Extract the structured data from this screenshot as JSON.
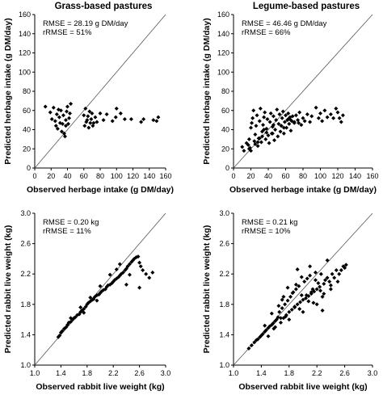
{
  "chart_data": [
    {
      "type": "scatter",
      "title": "Grass-based pastures",
      "xlabel": "Observed herbage intake (g DM/day)",
      "ylabel": "Predicted herbage intake (g DM/day)",
      "xlim": [
        0,
        160
      ],
      "ylim": [
        0,
        160
      ],
      "xticks": [
        "0",
        "20",
        "40",
        "60",
        "80",
        "100",
        "120",
        "140",
        "160"
      ],
      "yticks": [
        "0",
        "20",
        "40",
        "60",
        "80",
        "100",
        "120",
        "140",
        "160"
      ],
      "annotations": [
        "RMSE = 28.19 g DM/day",
        "rRMSE = 51%"
      ],
      "identity_line": true,
      "grid": false,
      "x": [
        13,
        19,
        21,
        23,
        25,
        26,
        27,
        28,
        29,
        30,
        31,
        32,
        33,
        34,
        35,
        36,
        37,
        38,
        38,
        39,
        40,
        41,
        42,
        43,
        44,
        60,
        61,
        62,
        63,
        64,
        65,
        66,
        67,
        68,
        69,
        70,
        71,
        72,
        74,
        76,
        80,
        84,
        88,
        95,
        99,
        100,
        105,
        110,
        118,
        130,
        133,
        145,
        149,
        151
      ],
      "y": [
        64,
        58,
        51,
        63,
        49,
        44,
        56,
        41,
        61,
        53,
        47,
        60,
        38,
        46,
        55,
        36,
        33,
        44,
        50,
        59,
        64,
        46,
        52,
        57,
        67,
        55,
        44,
        62,
        48,
        50,
        54,
        42,
        59,
        47,
        51,
        57,
        44,
        47,
        53,
        48,
        57,
        50,
        56,
        49,
        53,
        62,
        57,
        51,
        51,
        48,
        51,
        50,
        49,
        53
      ]
    },
    {
      "type": "scatter",
      "title": "Legume-based pastures",
      "xlabel": "Observed herbage intake (g DM/day)",
      "ylabel": "Predicted herbage intake (g DM/day)",
      "xlim": [
        0,
        160
      ],
      "ylim": [
        0,
        160
      ],
      "xticks": [
        "0",
        "20",
        "40",
        "60",
        "80",
        "100",
        "120",
        "140",
        "160"
      ],
      "yticks": [
        "0",
        "20",
        "40",
        "60",
        "80",
        "100",
        "120",
        "140",
        "160"
      ],
      "annotations": [
        "RMSE = 46.46 g DM/day",
        "rRMSE = 66%"
      ],
      "identity_line": true,
      "grid": false,
      "x": [
        10,
        12,
        15,
        17,
        18,
        19,
        20,
        21,
        22,
        23,
        24,
        25,
        26,
        27,
        28,
        29,
        30,
        31,
        32,
        33,
        34,
        35,
        36,
        37,
        38,
        39,
        40,
        41,
        42,
        43,
        44,
        45,
        46,
        47,
        48,
        49,
        50,
        51,
        52,
        53,
        54,
        55,
        56,
        57,
        58,
        59,
        60,
        61,
        62,
        63,
        64,
        65,
        66,
        67,
        68,
        70,
        72,
        74,
        76,
        78,
        80,
        82,
        85,
        88,
        90,
        95,
        98,
        100,
        102,
        105,
        108,
        112,
        115,
        118,
        120,
        122,
        124,
        126,
        20,
        25,
        30,
        35,
        45,
        55,
        63,
        70,
        18,
        28,
        33,
        38,
        46,
        58,
        66,
        75
      ],
      "y": [
        22,
        18,
        26,
        24,
        30,
        21,
        42,
        47,
        52,
        60,
        28,
        35,
        44,
        55,
        23,
        31,
        49,
        62,
        27,
        38,
        45,
        53,
        58,
        30,
        41,
        51,
        34,
        26,
        48,
        57,
        36,
        43,
        54,
        29,
        40,
        50,
        61,
        33,
        46,
        56,
        38,
        44,
        52,
        59,
        36,
        48,
        55,
        42,
        50,
        57,
        46,
        53,
        39,
        49,
        54,
        47,
        55,
        50,
        58,
        45,
        52,
        49,
        56,
        48,
        54,
        63,
        52,
        57,
        49,
        60,
        53,
        56,
        52,
        62,
        58,
        52,
        48,
        55,
        18,
        25,
        31,
        40,
        36,
        44,
        51,
        48,
        20,
        27,
        33,
        37,
        45,
        42,
        50,
        47
      ]
    },
    {
      "type": "scatter",
      "xlabel": "Observed rabbit live weight (kg)",
      "ylabel": "Predicted rabbit live weight (kg)",
      "xlim": [
        1.0,
        3.0
      ],
      "ylim": [
        1.0,
        3.0
      ],
      "xticks": [
        "1.0",
        "1.4",
        "1.8",
        "2.2",
        "2.6",
        "3.0"
      ],
      "yticks": [
        "1.0",
        "1.4",
        "1.8",
        "2.2",
        "2.6",
        "3.0"
      ],
      "annotations": [
        "RMSE = 0.20 kg",
        "rRMSE = 11%"
      ],
      "identity_line": true,
      "grid": false,
      "x": [
        1.36,
        1.38,
        1.4,
        1.42,
        1.45,
        1.48,
        1.5,
        1.52,
        1.55,
        1.58,
        1.6,
        1.62,
        1.65,
        1.68,
        1.7,
        1.72,
        1.75,
        1.78,
        1.8,
        1.82,
        1.85,
        1.88,
        1.9,
        1.92,
        1.95,
        1.98,
        2.0,
        2.02,
        2.05,
        2.08,
        2.1,
        2.12,
        2.15,
        2.18,
        2.2,
        2.22,
        2.25,
        2.28,
        2.3,
        2.32,
        2.35,
        2.38,
        2.4,
        2.42,
        2.45,
        2.48,
        2.5,
        2.52,
        2.55,
        2.58,
        2.6,
        2.62,
        2.65,
        2.7,
        2.75,
        2.8,
        1.55,
        1.7,
        1.85,
        2.0,
        2.15,
        2.3,
        2.45,
        2.6,
        1.75,
        1.95,
        2.25,
        2.4
      ],
      "y": [
        1.37,
        1.39,
        1.43,
        1.45,
        1.48,
        1.5,
        1.53,
        1.56,
        1.57,
        1.6,
        1.62,
        1.63,
        1.66,
        1.67,
        1.7,
        1.72,
        1.74,
        1.77,
        1.8,
        1.82,
        1.84,
        1.86,
        1.87,
        1.9,
        1.92,
        1.93,
        1.95,
        1.97,
        1.99,
        2.0,
        2.03,
        2.05,
        2.06,
        2.08,
        2.1,
        2.12,
        2.14,
        2.16,
        2.18,
        2.2,
        2.22,
        2.25,
        2.27,
        2.3,
        2.33,
        2.36,
        2.38,
        2.4,
        2.42,
        2.43,
        2.35,
        2.3,
        2.25,
        2.2,
        2.15,
        2.22,
        1.62,
        1.76,
        1.89,
        2.04,
        2.19,
        2.33,
        2.19,
        2.02,
        1.69,
        1.85,
        2.26,
        2.06
      ]
    },
    {
      "type": "scatter",
      "xlabel": "Observed rabbit live weight (kg)",
      "ylabel": "Predicted rabbit live weight (kg)",
      "xlim": [
        1.0,
        3.0
      ],
      "ylim": [
        1.0,
        3.0
      ],
      "xticks": [
        "1.0",
        "1.4",
        "1.8",
        "2.2",
        "2.6",
        "3.0"
      ],
      "yticks": [
        "1.0",
        "1.4",
        "1.8",
        "2.2",
        "2.6",
        "3.0"
      ],
      "annotations": [
        "RMSE = 0.21 kg",
        "rRMSE = 10%"
      ],
      "identity_line": true,
      "grid": false,
      "x": [
        1.22,
        1.26,
        1.3,
        1.33,
        1.35,
        1.38,
        1.4,
        1.42,
        1.45,
        1.47,
        1.5,
        1.52,
        1.55,
        1.57,
        1.6,
        1.62,
        1.64,
        1.66,
        1.68,
        1.7,
        1.72,
        1.74,
        1.76,
        1.78,
        1.8,
        1.82,
        1.84,
        1.86,
        1.88,
        1.9,
        1.92,
        1.94,
        1.96,
        1.98,
        2.0,
        2.02,
        2.04,
        2.06,
        2.08,
        2.1,
        2.12,
        2.14,
        2.16,
        2.18,
        2.2,
        2.22,
        2.24,
        2.26,
        2.28,
        2.3,
        2.32,
        2.35,
        2.38,
        2.4,
        2.42,
        2.45,
        2.48,
        2.5,
        2.52,
        2.55,
        2.58,
        2.6,
        2.62,
        1.45,
        1.55,
        1.65,
        1.75,
        1.85,
        1.95,
        2.05,
        2.15,
        2.25,
        2.35,
        1.5,
        1.6,
        1.7,
        1.8,
        1.9,
        2.0,
        2.1,
        2.2,
        2.3,
        2.4,
        1.68,
        1.78,
        1.88,
        1.98,
        2.08,
        2.18,
        2.28,
        1.58,
        1.72,
        1.92,
        2.12
      ],
      "y": [
        1.22,
        1.26,
        1.3,
        1.33,
        1.34,
        1.37,
        1.39,
        1.41,
        1.44,
        1.46,
        1.49,
        1.51,
        1.53,
        1.55,
        1.58,
        1.6,
        1.63,
        1.7,
        1.56,
        1.75,
        1.62,
        1.8,
        1.66,
        1.85,
        1.7,
        1.9,
        1.73,
        1.96,
        1.77,
        2.0,
        1.8,
        2.04,
        1.83,
        1.92,
        1.86,
        2.1,
        1.88,
        2.14,
        1.91,
        2.18,
        1.94,
        2.0,
        1.97,
        2.22,
        2.0,
        2.08,
        2.03,
        2.2,
        1.9,
        2.07,
        2.12,
        2.15,
        2.1,
        2.05,
        2.2,
        2.15,
        2.25,
        2.1,
        2.2,
        2.25,
        2.3,
        2.28,
        2.32,
        1.52,
        1.68,
        1.78,
        1.64,
        1.95,
        1.74,
        1.92,
        1.82,
        1.98,
        2.38,
        1.38,
        1.5,
        1.86,
        1.6,
        2.06,
        1.7,
        2.3,
        1.8,
        1.94,
        2.0,
        1.62,
        2.02,
        1.76,
        2.16,
        1.84,
        2.12,
        1.72,
        1.48,
        1.9,
        2.26,
        1.96
      ]
    }
  ]
}
